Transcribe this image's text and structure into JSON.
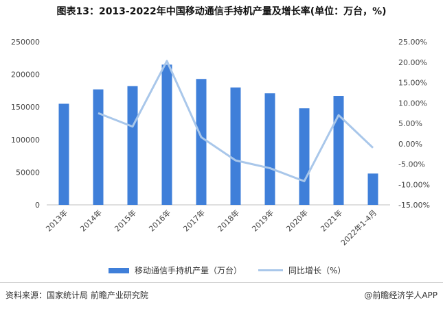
{
  "title": "图表13：2013-2022年中国移动通信手持机产量及增长率(单位：万台，%)",
  "chart_data": {
    "type": "bar",
    "categories": [
      "2013年",
      "2014年",
      "2015年",
      "2016年",
      "2017年",
      "2018年",
      "2019年",
      "2020年",
      "2021年",
      "2022年1-4月"
    ],
    "series": [
      {
        "name": "移动通信手持机产量（万台）",
        "type": "bar",
        "axis": "left",
        "values": [
          155000,
          177000,
          182000,
          215000,
          193000,
          180000,
          171000,
          148000,
          167000,
          48000
        ]
      },
      {
        "name": "同比增长（%）",
        "type": "line",
        "axis": "right",
        "values": [
          null,
          7.5,
          4.2,
          20.3,
          1.6,
          -4.1,
          -6.0,
          -9.2,
          7.0,
          -1.0
        ]
      }
    ],
    "ylim": [
      0,
      250000
    ],
    "yticks": [
      0,
      50000,
      100000,
      150000,
      200000,
      250000
    ],
    "y2lim": [
      -15,
      25
    ],
    "y2ticks": [
      "-15.00%",
      "-10.00%",
      "-5.00%",
      "0.00%",
      "5.00%",
      "10.00%",
      "15.00%",
      "20.00%",
      "25.00%"
    ],
    "legend_position": "bottom",
    "grid": false,
    "colors": {
      "bar": "#3f7fd9",
      "line": "#a9c7ea"
    }
  },
  "footer": {
    "source": "资料来源：国家统计局 前瞻产业研究院",
    "brand": "@前瞻经济学人APP"
  }
}
